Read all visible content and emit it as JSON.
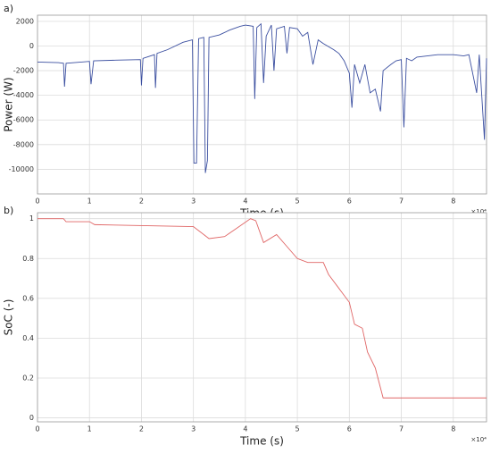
{
  "chart_data": [
    {
      "type": "line",
      "panel_label": "a)",
      "ylabel": "Power (W)",
      "xlabel": "Time (s)",
      "annotation": "×10⁴",
      "x": [
        0,
        4000,
        5000,
        5200,
        5500,
        10000,
        10300,
        10800,
        15000,
        19800,
        20000,
        20300,
        22500,
        22700,
        23000,
        25000,
        28000,
        29800,
        30100,
        30600,
        31000,
        32000,
        32300,
        32700,
        33000,
        35000,
        37000,
        39000,
        40000,
        41500,
        41800,
        42200,
        43000,
        43500,
        44000,
        45000,
        45500,
        46000,
        47500,
        48000,
        48500,
        50000,
        51000,
        52000,
        53000,
        54000,
        55000,
        57000,
        58000,
        59000,
        60000,
        60500,
        61000,
        62000,
        63000,
        64000,
        65000,
        66000,
        66500,
        68000,
        69000,
        70000,
        70500,
        71000,
        72000,
        73000,
        75000,
        77000,
        80000,
        82000,
        83000,
        84500,
        85000,
        86000,
        86400
      ],
      "series": [
        {
          "color": "#3b4fa0",
          "values": [
            -1300,
            -1350,
            -1400,
            -3300,
            -1400,
            -1250,
            -3100,
            -1200,
            -1150,
            -1100,
            -3200,
            -1000,
            -700,
            -3400,
            -600,
            -300,
            300,
            500,
            -9500,
            -9500,
            600,
            700,
            -10300,
            -9300,
            700,
            900,
            1300,
            1600,
            1700,
            1600,
            -4300,
            1500,
            1800,
            -3000,
            800,
            1700,
            -2000,
            1400,
            1600,
            -600,
            1500,
            1400,
            800,
            1100,
            -1500,
            500,
            200,
            -300,
            -600,
            -1200,
            -2200,
            -5000,
            -1500,
            -3000,
            -1500,
            -3800,
            -3500,
            -5300,
            -2000,
            -1500,
            -1200,
            -1100,
            -6600,
            -1000,
            -1200,
            -900,
            -800,
            -700,
            -700,
            -800,
            -700,
            -3800,
            -700,
            -7600,
            -1000
          ]
        }
      ],
      "xlim": [
        0,
        86400
      ],
      "ylim": [
        -12000,
        2500
      ],
      "xticks": [
        {
          "value": 0,
          "label": "0"
        },
        {
          "value": 10000,
          "label": "1"
        },
        {
          "value": 20000,
          "label": "2"
        },
        {
          "value": 30000,
          "label": "3"
        },
        {
          "value": 40000,
          "label": "4"
        },
        {
          "value": 50000,
          "label": "5"
        },
        {
          "value": 60000,
          "label": "6"
        },
        {
          "value": 70000,
          "label": "7"
        },
        {
          "value": 80000,
          "label": "8"
        }
      ],
      "yticks": [
        -10000,
        -8000,
        -6000,
        -4000,
        -2000,
        0,
        2000
      ],
      "grid": true
    },
    {
      "type": "line",
      "panel_label": "b)",
      "ylabel": "SoC (-)",
      "xlabel": "Time (s)",
      "annotation": "×10⁴",
      "x": [
        0,
        5000,
        5500,
        10000,
        11000,
        30000,
        32000,
        33000,
        36000,
        41000,
        42000,
        43500,
        46000,
        48000,
        50000,
        52000,
        55000,
        56000,
        58000,
        60000,
        61000,
        62500,
        63500,
        65000,
        66500,
        86400
      ],
      "series": [
        {
          "color": "#e06666",
          "values": [
            1,
            1,
            0.985,
            0.985,
            0.97,
            0.96,
            0.92,
            0.9,
            0.91,
            1.0,
            0.99,
            0.88,
            0.92,
            0.86,
            0.8,
            0.78,
            0.78,
            0.72,
            0.65,
            0.58,
            0.47,
            0.45,
            0.33,
            0.25,
            0.1,
            0.1
          ]
        }
      ],
      "xlim": [
        0,
        86400
      ],
      "ylim": [
        -0.02,
        1.03
      ],
      "xticks": [
        {
          "value": 0,
          "label": "0"
        },
        {
          "value": 10000,
          "label": "1"
        },
        {
          "value": 20000,
          "label": "2"
        },
        {
          "value": 30000,
          "label": "3"
        },
        {
          "value": 40000,
          "label": "4"
        },
        {
          "value": 50000,
          "label": "5"
        },
        {
          "value": 60000,
          "label": "6"
        },
        {
          "value": 70000,
          "label": "7"
        },
        {
          "value": 80000,
          "label": "8"
        }
      ],
      "yticks": [
        0,
        0.2,
        0.4,
        0.6,
        0.8,
        1
      ],
      "grid": true
    }
  ]
}
